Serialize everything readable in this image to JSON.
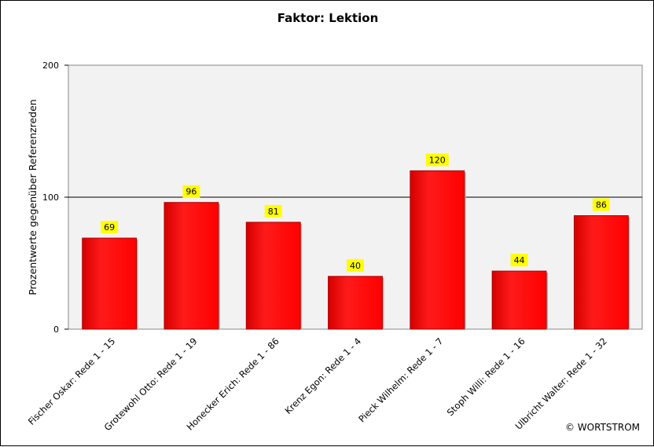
{
  "chart_data": {
    "type": "bar",
    "title": "Faktor: Lektion",
    "ylabel": "Prozentwerte gegenüber Referenzreden",
    "xlabel": "",
    "ylim": [
      0,
      200
    ],
    "yticks": [
      0,
      100,
      200
    ],
    "reference_line": 100,
    "grid": false,
    "categories": [
      "Fischer Oskar: Rede 1 - 15",
      "Grotewohl Otto: Rede 1 - 19",
      "Honecker Erich: Rede 1 - 86",
      "Krenz Egon: Rede 1 - 4",
      "Pieck Wilhelm: Rede 1 - 7",
      "Stoph Willi: Rede 1 - 16",
      "Ulbricht Walter: Rede 1 - 32"
    ],
    "values": [
      69,
      96,
      81,
      40,
      120,
      44,
      86
    ],
    "bar_color": "#ff0000",
    "bar_edge_color": "#aa0000",
    "label_bg_color": "#ffff00",
    "plot_bg_color": "#f2f2f2"
  },
  "copyright": "© WORTSTROM"
}
